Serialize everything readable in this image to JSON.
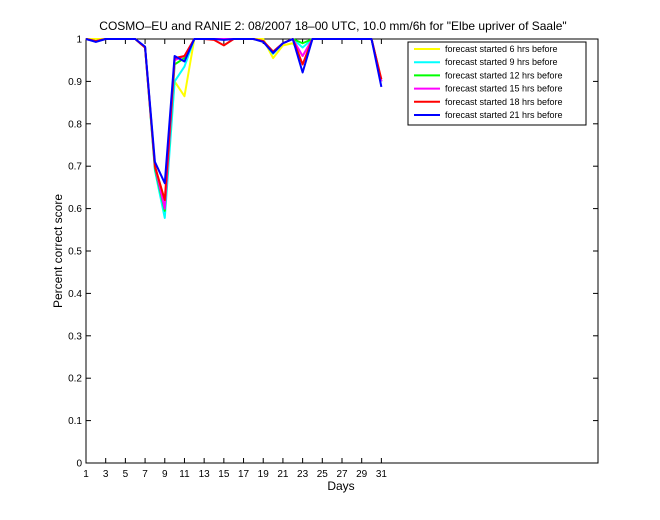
{
  "chart_data": {
    "type": "line",
    "title": "COSMO–EU and RANIE 2: 08/2007 18–00 UTC, 10.0 mm/6h for \"Elbe upriver of Saale\"",
    "xlabel": "Days",
    "ylabel": "Percent correct score",
    "xlim": [
      1,
      53
    ],
    "ylim": [
      0,
      1
    ],
    "xticks": [
      1,
      3,
      5,
      7,
      9,
      11,
      13,
      15,
      17,
      19,
      21,
      23,
      25,
      27,
      29,
      31
    ],
    "xtick_labels": [
      "1",
      "3",
      "5",
      "7",
      "9",
      "11",
      "13",
      "15",
      "17",
      "19",
      "21",
      "23",
      "25",
      "27",
      "29",
      "31"
    ],
    "yticks": [
      0,
      0.1,
      0.2,
      0.3,
      0.4,
      0.5,
      0.6,
      0.7,
      0.8,
      0.9,
      1
    ],
    "ytick_labels": [
      "0",
      "0.1",
      "0.2",
      "0.3",
      "0.4",
      "0.5",
      "0.6",
      "0.7",
      "0.8",
      "0.9",
      "1"
    ],
    "grid": false,
    "legend_position": "top-right",
    "x": [
      1,
      2,
      3,
      4,
      5,
      6,
      7,
      8,
      9,
      10,
      11,
      12,
      13,
      14,
      15,
      16,
      17,
      18,
      19,
      20,
      21,
      22,
      23,
      24,
      25,
      26,
      27,
      28,
      29,
      30,
      31
    ],
    "series": [
      {
        "name": "forecast started 6 hrs before",
        "color": "#ffff00",
        "values": [
          1,
          1,
          1,
          1,
          1,
          1,
          0.98,
          0.7,
          0.62,
          0.9,
          0.865,
          1,
          1,
          1,
          1,
          1,
          1,
          1,
          1,
          0.955,
          0.985,
          0.99,
          0.96,
          1,
          1,
          1,
          1,
          1,
          1,
          1,
          0.9
        ]
      },
      {
        "name": "forecast started 9 hrs before",
        "color": "#00ffff",
        "values": [
          1,
          0.995,
          1,
          1,
          1,
          1,
          0.98,
          0.69,
          0.578,
          0.9,
          0.935,
          1,
          1,
          1,
          1,
          1,
          1,
          1,
          0.995,
          0.965,
          0.99,
          1,
          0.98,
          1,
          1,
          1,
          1,
          1,
          1,
          1,
          0.9
        ]
      },
      {
        "name": "forecast started 12 hrs before",
        "color": "#00ff00",
        "values": [
          1,
          0.995,
          1,
          1,
          1,
          1,
          0.98,
          0.695,
          0.595,
          0.94,
          0.955,
          1,
          1,
          1,
          1,
          1,
          1,
          1,
          0.995,
          0.97,
          0.99,
          1,
          0.99,
          1,
          1,
          1,
          1,
          1,
          1,
          1,
          0.9
        ]
      },
      {
        "name": "forecast started 15 hrs before",
        "color": "#ff00ff",
        "values": [
          1,
          0.995,
          1,
          1,
          1,
          1,
          0.98,
          0.7,
          0.6,
          0.95,
          0.96,
          1,
          1,
          1,
          1,
          1,
          1,
          1,
          0.995,
          0.97,
          0.99,
          1,
          0.96,
          1,
          1,
          1,
          1,
          1,
          1,
          1,
          0.9
        ]
      },
      {
        "name": "forecast started 18 hrs before",
        "color": "#ff0000",
        "values": [
          1,
          0.995,
          1,
          1,
          1,
          1,
          0.98,
          0.7,
          0.62,
          0.955,
          0.96,
          1,
          1,
          0.998,
          0.985,
          1,
          1,
          1,
          0.995,
          0.97,
          0.99,
          1,
          0.94,
          1,
          1,
          1,
          1,
          1,
          1,
          1,
          0.905
        ]
      },
      {
        "name": "forecast started 21 hrs before",
        "color": "#0000ff",
        "values": [
          1,
          0.993,
          1,
          1,
          1,
          1,
          0.982,
          0.71,
          0.66,
          0.96,
          0.947,
          1,
          1,
          1,
          0.998,
          1,
          1,
          1,
          0.993,
          0.967,
          0.99,
          1,
          0.921,
          1,
          1,
          1,
          1,
          1,
          1,
          1,
          0.887
        ]
      }
    ]
  }
}
